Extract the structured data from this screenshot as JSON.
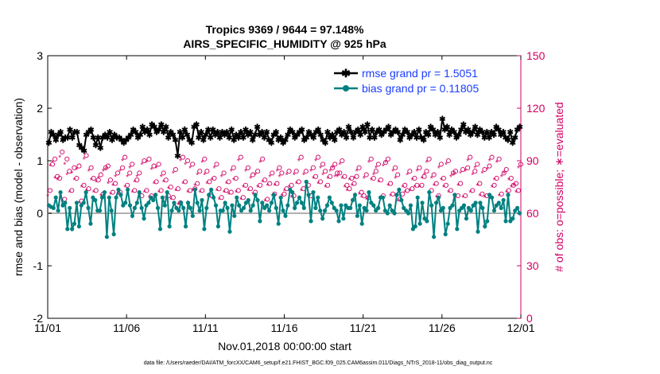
{
  "chart_data": {
    "type": "line",
    "title": [
      "Tropics 9369 / 9644 = 97.148%",
      "AIRS_SPECIFIC_HUMIDITY @ 925 hPa"
    ],
    "xlabel": "Nov.01,2018 00:00:00 start",
    "ylabel_left": "rmse and bias (model - observation)",
    "ylabel_right": "# of obs: o=possible; ∗=evaluated",
    "ylim_left": [
      -2,
      3
    ],
    "ylim_right": [
      0,
      150
    ],
    "xlim": [
      0,
      30
    ],
    "x_tick_values": [
      0,
      5,
      10,
      15,
      20,
      25,
      30
    ],
    "x_tick_labels": [
      "11/01",
      "11/06",
      "11/11",
      "11/16",
      "11/21",
      "11/26",
      "12/01"
    ],
    "y_left_ticks": [
      "-2",
      "-1",
      "0",
      "1",
      "2",
      "3"
    ],
    "y_left_tick_values": [
      -2,
      -1,
      0,
      1,
      2,
      3
    ],
    "y_right_ticks": [
      "0",
      "30",
      "60",
      "90",
      "120",
      "150"
    ],
    "y_right_tick_values": [
      0,
      30,
      60,
      90,
      120,
      150
    ],
    "series": [
      {
        "name": "rmse grand pr = 1.5051",
        "color": "#000000",
        "marker": "asterisk",
        "axis": "left",
        "values": [
          1.35,
          1.55,
          1.5,
          1.4,
          1.5,
          1.55,
          1.4,
          1.45,
          1.45,
          1.6,
          1.45,
          1.55,
          1.55,
          1.3,
          1.25,
          1.2,
          1.5,
          1.55,
          1.6,
          1.45,
          1.3,
          1.45,
          1.25,
          1.45,
          1.5,
          1.45,
          1.55,
          1.4,
          1.5,
          1.45,
          1.45,
          1.4,
          1.35,
          1.4,
          1.45,
          1.5,
          1.6,
          1.55,
          1.45,
          1.5,
          1.65,
          1.55,
          1.6,
          1.5,
          1.7,
          1.65,
          1.55,
          1.6,
          1.7,
          1.55,
          1.65,
          1.45,
          1.55,
          1.5,
          1.4,
          1.1,
          1.55,
          1.45,
          1.6,
          1.5,
          1.4,
          1.35,
          1.65,
          1.7,
          1.45,
          1.55,
          1.4,
          1.5,
          1.6,
          1.45,
          1.6,
          1.5,
          1.55,
          1.45,
          1.55,
          1.5,
          1.55,
          1.45,
          1.6,
          1.4,
          1.5,
          1.45,
          1.55,
          1.45,
          1.6,
          1.5,
          1.55,
          1.4,
          1.5,
          1.65,
          1.5,
          1.55,
          1.45,
          1.55,
          1.4,
          1.35,
          1.5,
          1.55,
          1.4,
          1.45,
          1.35,
          1.4,
          1.5,
          1.6,
          1.55,
          1.45,
          1.5,
          1.55,
          1.6,
          1.4,
          1.45,
          1.55,
          1.5,
          1.45,
          1.55,
          1.6,
          1.5,
          1.4,
          1.35,
          1.55,
          1.45,
          1.5,
          1.4,
          1.55,
          1.6,
          1.5,
          1.55,
          1.45,
          1.65,
          1.55,
          1.45,
          1.55,
          1.6,
          1.5,
          1.65,
          1.55,
          1.7,
          1.45,
          1.6,
          1.45,
          1.55,
          1.6,
          1.5,
          1.55,
          1.6,
          1.65,
          1.5,
          1.55,
          1.6,
          1.55,
          1.4,
          1.5,
          1.6,
          1.55,
          1.45,
          1.5,
          1.55,
          1.45,
          1.6,
          1.45,
          1.4,
          1.55,
          1.5,
          1.65,
          1.6,
          1.5,
          1.55,
          1.45,
          1.8,
          1.6,
          1.65,
          1.5,
          1.6,
          1.55,
          1.45,
          1.5,
          1.6,
          1.7,
          1.55,
          1.6,
          1.5,
          1.55,
          1.65,
          1.5,
          1.6,
          1.55,
          1.45,
          1.55,
          1.45,
          1.55,
          1.5,
          1.65,
          1.6,
          1.5,
          1.55,
          1.45,
          1.4,
          1.55,
          1.35,
          1.45,
          1.6,
          1.65
        ]
      },
      {
        "name": "bias grand pr = 0.11805",
        "color": "#008080",
        "marker": "circle",
        "axis": "left",
        "values": [
          0.15,
          0.12,
          0.1,
          0.3,
          0.05,
          0.4,
          0.15,
          0.2,
          -0.3,
          0.1,
          -0.3,
          -0.2,
          0.2,
          -0.25,
          0.15,
          0.2,
          0.4,
          0.1,
          -0.2,
          0.3,
          0.25,
          0.05,
          0.05,
          0.3,
          0.4,
          -0.45,
          0.3,
          0.05,
          -0.4,
          0.3,
          0.45,
          0.35,
          0.15,
          0.2,
          0.45,
          0.15,
          -0.05,
          0.1,
          0.2,
          0.4,
          0.1,
          -0.1,
          0.15,
          0.2,
          0.3,
          0.25,
          0.35,
          0.1,
          -0.3,
          0.3,
          0.15,
          0.4,
          -0.25,
          0.05,
          0.2,
          0.1,
          0.05,
          0.2,
          0.1,
          -0.25,
          0.2,
          0.1,
          -0.05,
          0.45,
          0.2,
          0.05,
          0.25,
          -0.3,
          0.1,
          0.35,
          0.45,
          0.3,
          0.15,
          -0.25,
          0.05,
          0.05,
          0.2,
          0.1,
          -0.35,
          0.15,
          -0.05,
          0.3,
          0.15,
          0.05,
          0.1,
          0.2,
          0.25,
          0.05,
          0.15,
          0.35,
          0.25,
          -0.15,
          0.2,
          0.1,
          0.15,
          0.05,
          0.2,
          0.35,
          0.1,
          -0.2,
          0.3,
          0.05,
          -0.05,
          0.15,
          0.45,
          0.4,
          0.1,
          0.2,
          0.3,
          0.2,
          0.1,
          0.6,
          0.35,
          -0.15,
          0.4,
          0.1,
          0.3,
          0.05,
          -0.1,
          0.05,
          0.15,
          0.3,
          0.2,
          0.1,
          0.05,
          -0.15,
          0.15,
          -0.1,
          0.15,
          0.1,
          0.1,
          0.25,
          0.35,
          -0.05,
          0.15,
          -0.2,
          0.1,
          0.05,
          0.4,
          0.2,
          0.15,
          0.05,
          0.1,
          0.3,
          0.3,
          0.05,
          0.0,
          0.15,
          0.05,
          0.0,
          0.35,
          0.45,
          0.25,
          0.1,
          0.05,
          0.0,
          0.15,
          -0.3,
          -0.25,
          0.3,
          -0.2,
          0.2,
          -0.1,
          -0.15,
          0.4,
          0.15,
          -0.45,
          0.2,
          0.3,
          0.05,
          0.1,
          -0.4,
          -0.2,
          0.1,
          0.15,
          0.35,
          -0.3,
          0.05,
          0.1,
          0.15,
          -0.1,
          0.1,
          0.05,
          0.15,
          0.2,
          -0.35,
          0.2,
          0.1,
          -0.25,
          -0.15,
          0.35,
          0.3,
          0.05,
          0.15,
          0.2,
          0.1,
          0.25,
          -0.15,
          0.35,
          -0.15,
          -0.1,
          0.05,
          0.1,
          0.0
        ]
      },
      {
        "name": "possible",
        "color": "#d10064",
        "marker": "open-circle",
        "axis": "right",
        "values": [
          73,
          88,
          91,
          81,
          80,
          95,
          68,
          91,
          84,
          73,
          86,
          80,
          87,
          67,
          76,
          93,
          74,
          86,
          80,
          73,
          79,
          82,
          71,
          86,
          87,
          79,
          72,
          77,
          83,
          72,
          86,
          92,
          76,
          83,
          88,
          73,
          79,
          83,
          70,
          90,
          73,
          91,
          70,
          87,
          78,
          88,
          73,
          83,
          79,
          70,
          75,
          69,
          85,
          74,
          66,
          92,
          78,
          90,
          73,
          88,
          74,
          77,
          84,
          73,
          91,
          84,
          78,
          70,
          80,
          88,
          74,
          69,
          83,
          73,
          78,
          72,
          86,
          80,
          73,
          92,
          69,
          76,
          86,
          74,
          82,
          72,
          84,
          76,
          91,
          79,
          68,
          77,
          83,
          71,
          77,
          86,
          83,
          71,
          74,
          84,
          76,
          70,
          84,
          78,
          92,
          74,
          84,
          76,
          70,
          86,
          81,
          92,
          78,
          88,
          84,
          76,
          81,
          86,
          88,
          83,
          83,
          90,
          81,
          76,
          74,
          80,
          77,
          81,
          86,
          72,
          70,
          82,
          69,
          91,
          80,
          84,
          88,
          79,
          70,
          89,
          91,
          77,
          71,
          86,
          82,
          68,
          71,
          76,
          73,
          84,
          74,
          80,
          76,
          86,
          76,
          81,
          84,
          91,
          73,
          82,
          77,
          70,
          88,
          80,
          76,
          90,
          73,
          83,
          84,
          70,
          77,
          85,
          70,
          86,
          92,
          73,
          84,
          88,
          77,
          71,
          85,
          70,
          87,
          92,
          76,
          80,
          91,
          71,
          83,
          85,
          73,
          80,
          76,
          77,
          73,
          88
        ]
      },
      {
        "name": "evaluated",
        "color": "#d10064",
        "marker": "asterisk",
        "axis": "right",
        "values": [
          70,
          87,
          89,
          80,
          79,
          92,
          67,
          88,
          82,
          72,
          83,
          79,
          85,
          66,
          75,
          91,
          73,
          84,
          79,
          72,
          78,
          80,
          70,
          84,
          85,
          77,
          71,
          76,
          81,
          71,
          84,
          90,
          75,
          81,
          86,
          72,
          78,
          81,
          69,
          88,
          72,
          89,
          69,
          85,
          77,
          86,
          72,
          81,
          78,
          69,
          74,
          68,
          83,
          73,
          65,
          90,
          77,
          88,
          72,
          86,
          73,
          76,
          82,
          72,
          89,
          82,
          77,
          69,
          79,
          86,
          73,
          68,
          81,
          72,
          77,
          71,
          84,
          79,
          72,
          90,
          68,
          75,
          84,
          73,
          80,
          71,
          82,
          75,
          89,
          78,
          67,
          76,
          81,
          70,
          76,
          84,
          81,
          70,
          73,
          82,
          75,
          69,
          82,
          77,
          90,
          73,
          82,
          75,
          69,
          84,
          80,
          90,
          77,
          86,
          82,
          75,
          80,
          84,
          86,
          81,
          81,
          88,
          80,
          75,
          73,
          79,
          76,
          80,
          84,
          71,
          69,
          80,
          68,
          89,
          79,
          82,
          86,
          78,
          69,
          87,
          89,
          76,
          70,
          84,
          80,
          67,
          70,
          75,
          72,
          82,
          73,
          79,
          75,
          84,
          75,
          80,
          82,
          89,
          72,
          80,
          76,
          69,
          86,
          79,
          75,
          88,
          72,
          81,
          82,
          69,
          76,
          83,
          69,
          84,
          90,
          72,
          82,
          86,
          76,
          70,
          83,
          69,
          85,
          90,
          75,
          79,
          89,
          70,
          81,
          83,
          72,
          79,
          75,
          76,
          72,
          86
        ]
      }
    ],
    "legend": [
      "rmse grand pr = 1.5051",
      "bias grand pr = 0.11805"
    ],
    "legend_position": "top-right",
    "zero_line": 0
  },
  "footer": {
    "data_file": "data file: /Users/raeder/DAI/ATM_forcXX/CAM6_setup/f.e21.FHIST_BGC.f09_025.CAM6assim.011/Diags_NTrS_2018-11/obs_diag_output.nc"
  },
  "colors": {
    "axis": "#000000",
    "right_axis": "#d10064",
    "legend_text": "#1a3cff",
    "zero_line": "#b0b0b0"
  }
}
